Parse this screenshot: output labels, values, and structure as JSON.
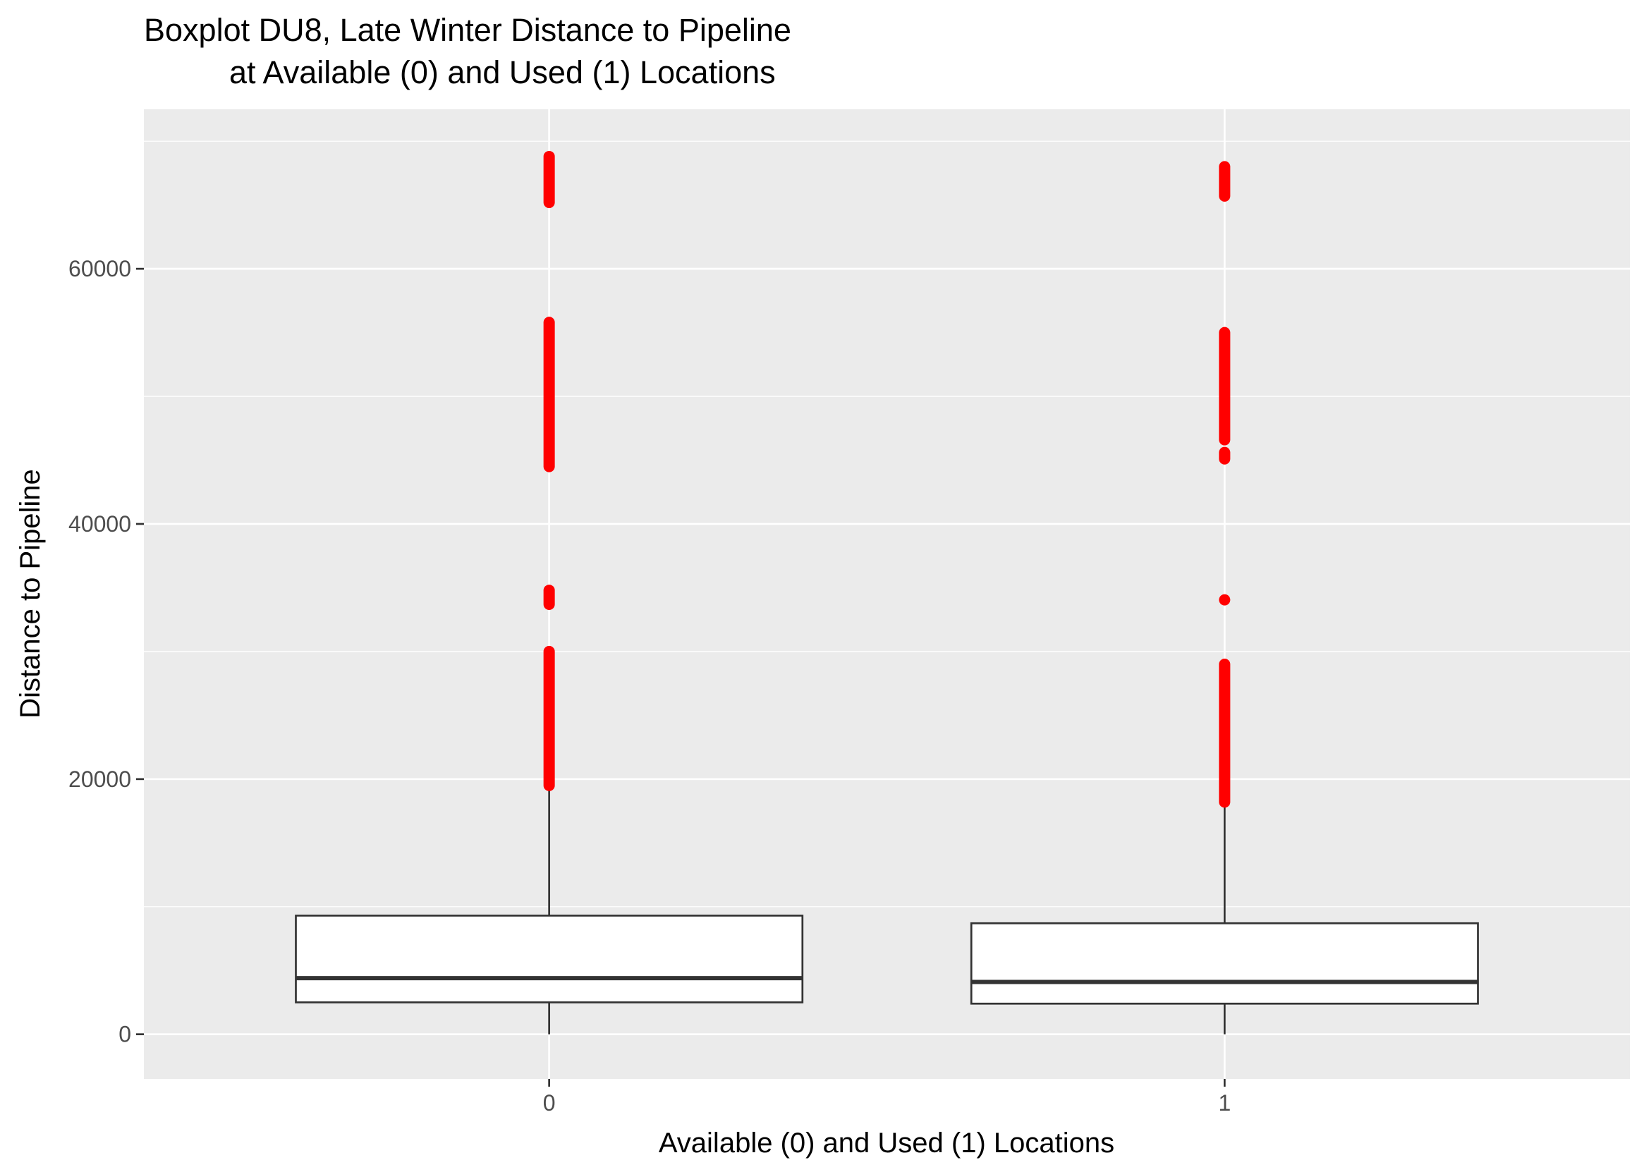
{
  "chart_data": {
    "type": "boxplot",
    "title_line1": "Boxplot DU8, Late Winter Distance to Pipeline",
    "title_line2": "at Available (0) and Used (1) Locations",
    "xlabel": "Available (0) and Used (1) Locations",
    "ylabel": "Distance to Pipeline",
    "categories": [
      "0",
      "1"
    ],
    "ylim": [
      -3500,
      72500
    ],
    "yticks": [
      0,
      20000,
      40000,
      60000
    ],
    "ytick_labels": [
      "0",
      "20000",
      "40000",
      "60000"
    ],
    "grid": true,
    "colors": {
      "panel": "#ebebeb",
      "grid": "#ffffff",
      "box_fill": "#ffffff",
      "box_line": "#333333",
      "outlier": "#ff0000"
    },
    "boxes": [
      {
        "category": "0",
        "whisker_low": 0,
        "q1": 2500,
        "median": 4400,
        "q3": 9300,
        "whisker_high": 19400,
        "outlier_ranges": [
          [
            19500,
            30000
          ],
          [
            33700,
            34800
          ],
          [
            44500,
            55800
          ],
          [
            65200,
            68800
          ]
        ]
      },
      {
        "category": "1",
        "whisker_low": 0,
        "q1": 2400,
        "median": 4100,
        "q3": 8700,
        "whisker_high": 18100,
        "outlier_ranges": [
          [
            18200,
            29000
          ],
          [
            34000,
            34100
          ],
          [
            45100,
            45600
          ],
          [
            46600,
            55000
          ],
          [
            65700,
            68000
          ]
        ]
      }
    ]
  }
}
